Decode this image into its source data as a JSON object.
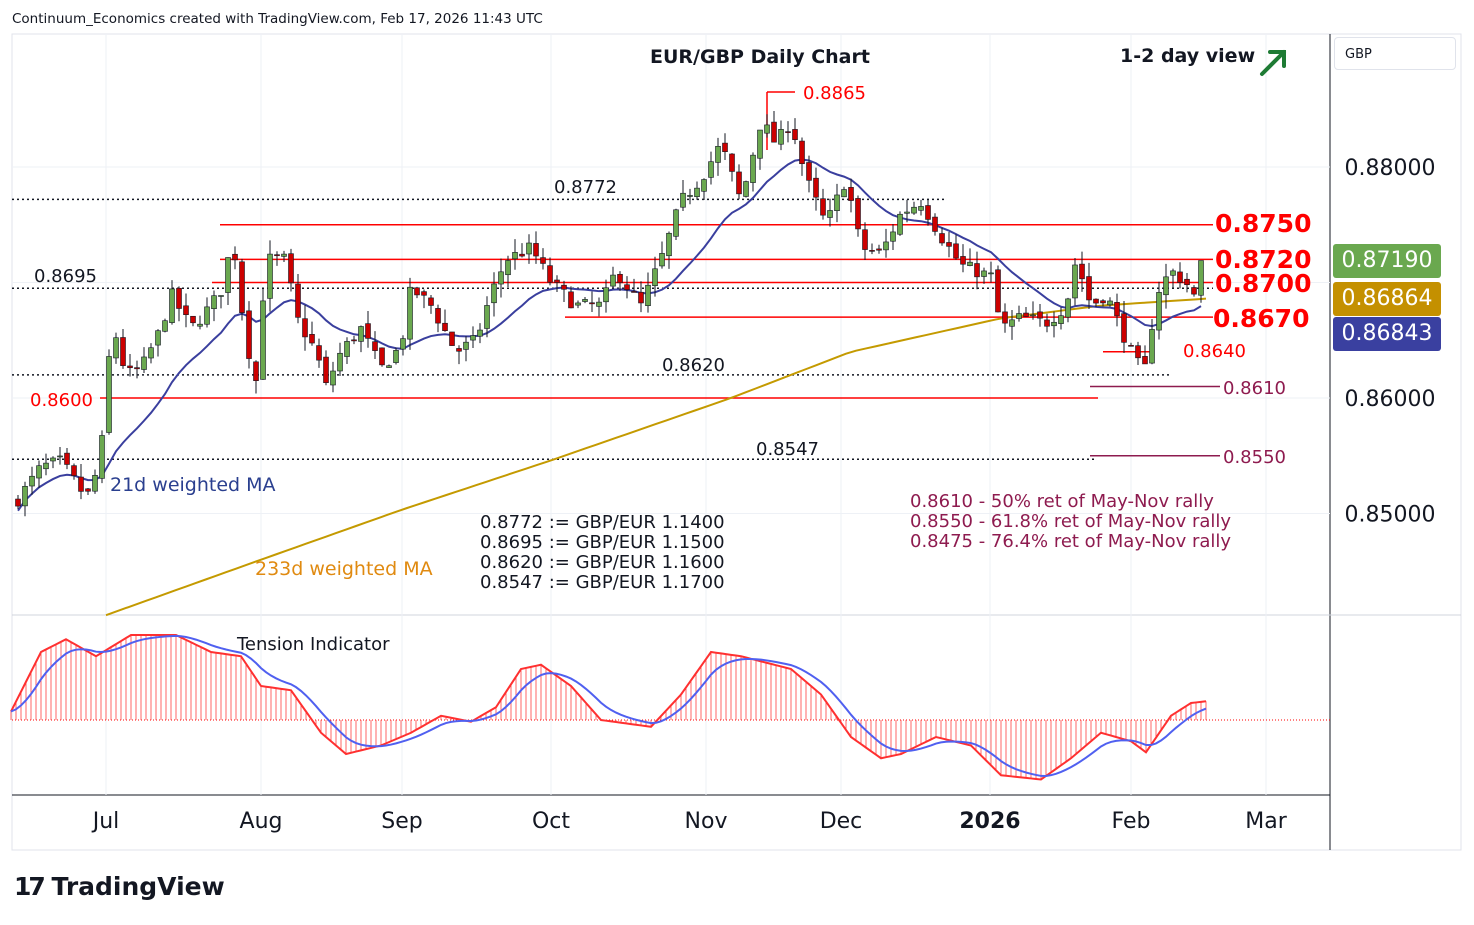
{
  "header": {
    "attribution": "Continuum_Economics created with TradingView.com, Feb 17, 2026 11:43 UTC"
  },
  "chart_data": {
    "type": "candlestick",
    "title": "EUR/GBP Daily Chart",
    "view_label": "1-2 day view",
    "currency": "GBP",
    "x_tick_labels": [
      "Jul",
      "Aug",
      "Sep",
      "Oct",
      "Nov",
      "Dec",
      "2026",
      "Feb",
      "Mar"
    ],
    "y_tick_labels": [
      "0.88000",
      "0.86000",
      "0.85000"
    ],
    "ylim": [
      0.8412,
      0.89
    ],
    "close_waypoints_day_from_jul1": [
      [
        -18,
        0.851
      ],
      [
        -13,
        0.854
      ],
      [
        -9,
        0.8545
      ],
      [
        -5,
        0.852
      ],
      [
        -3,
        0.8515
      ],
      [
        0,
        0.858
      ],
      [
        1,
        0.867
      ],
      [
        4,
        0.862
      ],
      [
        7,
        0.8625
      ],
      [
        11,
        0.866
      ],
      [
        13,
        0.869
      ],
      [
        17,
        0.866
      ],
      [
        21,
        0.868
      ],
      [
        24,
        0.87
      ],
      [
        25,
        0.875
      ],
      [
        28,
        0.865
      ],
      [
        30,
        0.8615
      ],
      [
        32,
        0.872
      ],
      [
        36,
        0.872
      ],
      [
        38,
        0.867
      ],
      [
        42,
        0.864
      ],
      [
        44,
        0.861
      ],
      [
        47,
        0.864
      ],
      [
        51,
        0.866
      ],
      [
        55,
        0.8625
      ],
      [
        59,
        0.8645
      ],
      [
        61,
        0.8695
      ],
      [
        65,
        0.868
      ],
      [
        70,
        0.864
      ],
      [
        74,
        0.865
      ],
      [
        77,
        0.869
      ],
      [
        80,
        0.872
      ],
      [
        85,
        0.873
      ],
      [
        89,
        0.87
      ],
      [
        94,
        0.868
      ],
      [
        99,
        0.868
      ],
      [
        102,
        0.871
      ],
      [
        107,
        0.868
      ],
      [
        111,
        0.872
      ],
      [
        115,
        0.877
      ],
      [
        119,
        0.879
      ],
      [
        123,
        0.882
      ],
      [
        127,
        0.877
      ],
      [
        131,
        0.884
      ],
      [
        134,
        0.882
      ],
      [
        137,
        0.884
      ],
      [
        140,
        0.879
      ],
      [
        144,
        0.875
      ],
      [
        148,
        0.879
      ],
      [
        151,
        0.873
      ],
      [
        155,
        0.8725
      ],
      [
        159,
        0.876
      ],
      [
        163,
        0.877
      ],
      [
        167,
        0.874
      ],
      [
        171,
        0.8715
      ],
      [
        177,
        0.8705
      ],
      [
        179,
        0.866
      ],
      [
        183,
        0.867
      ],
      [
        188,
        0.8665
      ],
      [
        192,
        0.868
      ],
      [
        194,
        0.872
      ],
      [
        197,
        0.868
      ],
      [
        200,
        0.869
      ],
      [
        203,
        0.866
      ],
      [
        206,
        0.863
      ],
      [
        208,
        0.8625
      ],
      [
        210,
        0.869
      ],
      [
        213,
        0.871
      ],
      [
        216,
        0.87
      ],
      [
        218,
        0.8685
      ],
      [
        220,
        0.8719
      ]
    ],
    "ma233_waypoints": [
      [
        0,
        0.8412
      ],
      [
        31,
        0.846
      ],
      [
        59,
        0.8503
      ],
      [
        89,
        0.8546
      ],
      [
        125,
        0.86
      ],
      [
        149,
        0.864
      ],
      [
        179,
        0.8669
      ],
      [
        199,
        0.868
      ],
      [
        220,
        0.8686
      ]
    ],
    "tension_waypoints": [
      [
        -19,
        0.1
      ],
      [
        -13,
        0.8
      ],
      [
        -8,
        0.95
      ],
      [
        -2,
        0.75
      ],
      [
        5,
        1.0
      ],
      [
        14,
        1.0
      ],
      [
        21,
        0.8
      ],
      [
        27,
        0.75
      ],
      [
        31,
        0.4
      ],
      [
        37,
        0.35
      ],
      [
        43,
        -0.15
      ],
      [
        48,
        -0.4
      ],
      [
        55,
        -0.3
      ],
      [
        61,
        -0.15
      ],
      [
        67,
        0.05
      ],
      [
        73,
        -0.02
      ],
      [
        78,
        0.15
      ],
      [
        83,
        0.6
      ],
      [
        87,
        0.65
      ],
      [
        93,
        0.4
      ],
      [
        99,
        0.0
      ],
      [
        109,
        -0.08
      ],
      [
        115,
        0.3
      ],
      [
        121,
        0.8
      ],
      [
        127,
        0.75
      ],
      [
        137,
        0.6
      ],
      [
        143,
        0.3
      ],
      [
        149,
        -0.2
      ],
      [
        155,
        -0.45
      ],
      [
        159,
        -0.4
      ],
      [
        166,
        -0.2
      ],
      [
        173,
        -0.3
      ],
      [
        179,
        -0.65
      ],
      [
        187,
        -0.7
      ],
      [
        193,
        -0.45
      ],
      [
        199,
        -0.15
      ],
      [
        205,
        -0.25
      ],
      [
        208,
        -0.38
      ],
      [
        213,
        0.05
      ],
      [
        217,
        0.2
      ],
      [
        220,
        0.22
      ]
    ],
    "levels": {
      "resistance": [
        "0.8865",
        "0.8750",
        "0.8720",
        "0.8700",
        "0.8670"
      ],
      "support": [
        "0.8640",
        "0.8610",
        "0.8600",
        "0.8550"
      ],
      "dotted": [
        "0.8772",
        "0.8695",
        "0.8620",
        "0.8547"
      ]
    },
    "last_price": "0.87190",
    "ma233_value": "0.86864",
    "ma21_value": "0.86843",
    "labels": {
      "ma21": "21d weighted MA",
      "ma233": "233d weighted MA",
      "tension": "Tension Indicator"
    },
    "notes_conversion": [
      "0.8772 := GBP/EUR 1.1400",
      "0.8695 := GBP/EUR 1.1500",
      "0.8620 := GBP/EUR 1.1600",
      "0.8547 := GBP/EUR 1.1700"
    ],
    "notes_retracement": [
      "0.8610 - 50% ret of May-Nov rally",
      "0.8550 - 61.8% ret of May-Nov rally",
      "0.8475 - 76.4% ret of May-Nov rally"
    ],
    "colors": {
      "up": "#6aa84f",
      "down": "#cc0000",
      "ma21": "#3a3f9e",
      "ma233": "#c49a00",
      "level": "#ff0000",
      "retr": "#8e1b4f"
    }
  },
  "brand": "TradingView"
}
